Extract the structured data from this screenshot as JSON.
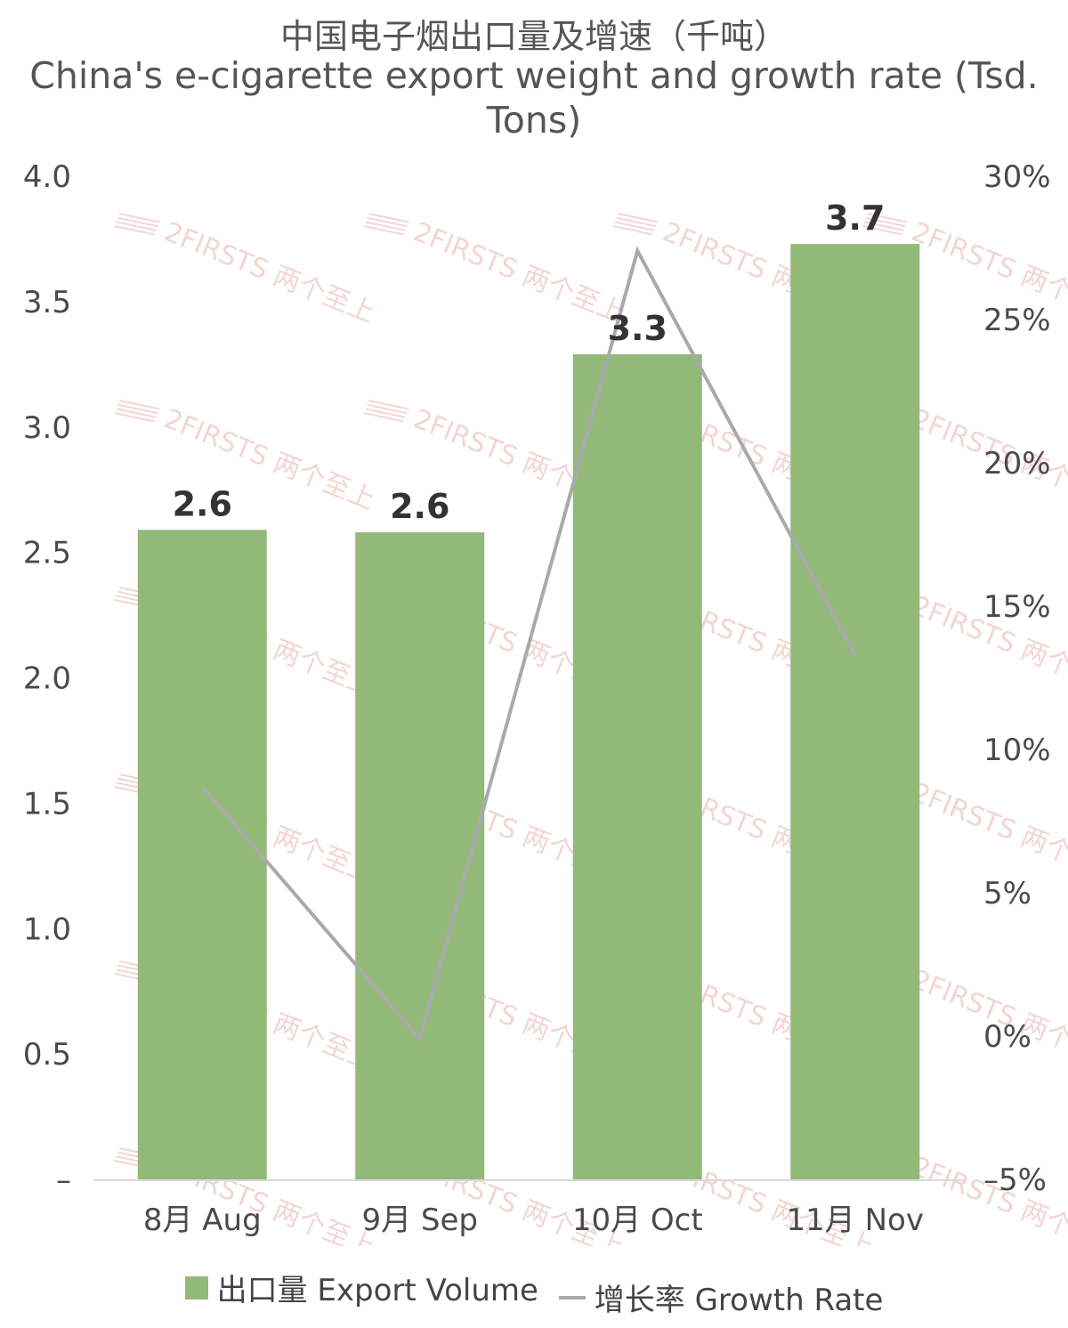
{
  "colors": {
    "bar": "#93B978",
    "line": "#A9A9AD",
    "watermark": "#E8B4B4",
    "axis_text": "#4a4a4a",
    "label_text": "#333333"
  },
  "watermark_text": "2FIRSTS 两个至上",
  "chart_data": {
    "type": "bar",
    "title": "中国电子烟出口量及增速（千吨）",
    "subtitle": "China's e-cigarette export weight and growth rate (Tsd. Tons)",
    "categories": [
      "8月 Aug",
      "9月 Sep",
      "10月 Oct",
      "11月 Nov"
    ],
    "series": [
      {
        "name": "出口量 Export Volume",
        "type": "bar",
        "axis": "left",
        "values": [
          2.59,
          2.58,
          3.29,
          3.73
        ],
        "labels": [
          "2.6",
          "2.6",
          "3.3",
          "3.7"
        ]
      },
      {
        "name": "增长率 Growth Rate",
        "type": "line",
        "axis": "right",
        "values": [
          8.7,
          -0.1,
          27.4,
          13.3
        ]
      }
    ],
    "y_left": {
      "range": [
        0,
        4
      ],
      "ticks": [
        "–",
        "0.5",
        "1.0",
        "1.5",
        "2.0",
        "2.5",
        "3.0",
        "3.5",
        "4.0"
      ]
    },
    "y_right": {
      "range": [
        -5,
        30
      ],
      "ticks": [
        "–5%",
        "0%",
        "5%",
        "10%",
        "15%",
        "20%",
        "25%",
        "30%"
      ]
    },
    "grid": false,
    "legend_position": "bottom"
  }
}
